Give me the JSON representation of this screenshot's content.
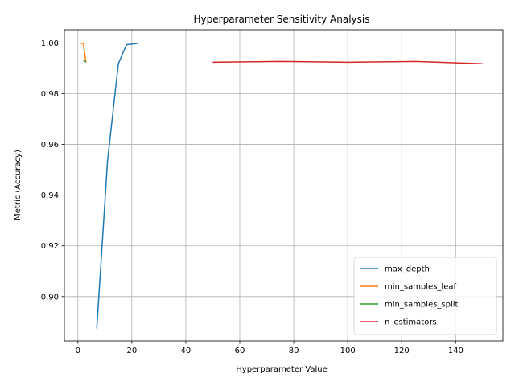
{
  "chart_data": {
    "type": "line",
    "title": "Hyperparameter Sensitivity Analysis",
    "xlabel": "Hyperparameter Value",
    "ylabel": "Metric (Accuracy)",
    "xlim": [
      -5,
      157.5
    ],
    "ylim": [
      0.8825,
      1.0052
    ],
    "xticks": [
      0,
      20,
      40,
      60,
      80,
      100,
      120,
      140
    ],
    "yticks": [
      0.9,
      0.92,
      0.94,
      0.96,
      0.98,
      1.0
    ],
    "ytick_labels": [
      "0.90",
      "0.92",
      "0.94",
      "0.96",
      "0.98",
      "1.00"
    ],
    "grid": true,
    "legend_position": "lower-right",
    "series": [
      {
        "name": "max_depth",
        "color": "#1f77b4",
        "points": [
          [
            7,
            0.8874
          ],
          [
            11,
            0.9536
          ],
          [
            15,
            0.9918
          ],
          [
            18,
            0.9993
          ],
          [
            22,
            0.9998
          ]
        ]
      },
      {
        "name": "min_samples_leaf",
        "color": "#ff7f0e",
        "points": [
          [
            1,
            0.9999
          ],
          [
            2,
            0.9998
          ],
          [
            3,
            0.9923
          ]
        ]
      },
      {
        "name": "min_samples_split",
        "color": "#2ca02c",
        "points": [
          [
            2,
            0.9931
          ],
          [
            3,
            0.9926
          ]
        ]
      },
      {
        "name": "n_estimators",
        "color": "#d62728",
        "points": [
          [
            50,
            0.9924
          ],
          [
            75,
            0.9927
          ],
          [
            100,
            0.9924
          ],
          [
            125,
            0.9927
          ],
          [
            150,
            0.9918
          ]
        ]
      }
    ]
  }
}
